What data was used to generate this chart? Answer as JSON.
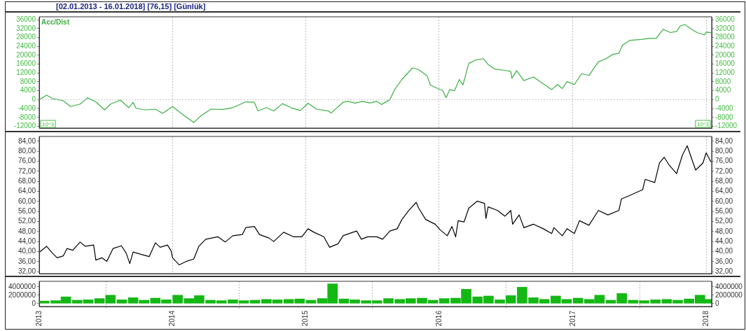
{
  "chart_data": [
    {
      "type": "line",
      "title": "[02.01.2013 - 16.01.2018]  [76,15]  [Günlük]",
      "legend": "top left",
      "grid": "x",
      "tick_labels": "y",
      "annotations": [
        "10^3",
        "10^3"
      ],
      "xlim": [
        "2013-01-01",
        "2018-01-16"
      ],
      "xticks": [
        "2013",
        "2014",
        "2015",
        "2016",
        "2017",
        "2018"
      ],
      "ylim": [
        -12800,
        37300
      ],
      "yticks": [
        -12000,
        -8000,
        -4000,
        0,
        4000,
        8000,
        12000,
        16000,
        20000,
        24000,
        28000,
        32000,
        36000
      ],
      "y2lim": [
        -12800,
        37300
      ],
      "y2ticks": [
        -12000,
        -8000,
        -4000,
        0,
        4000,
        8000,
        12000,
        16000,
        20000,
        24000,
        28000,
        32000,
        36000
      ],
      "ref_lines": [
        {
          "axis": "y",
          "value": 0,
          "color": "#c8c8c8",
          "line_style": "dotted"
        }
      ],
      "series": [
        {
          "name": "Acc/Dist",
          "color": "#3cb043",
          "x": [
            "2013-01-02",
            "2013-01-21",
            "2013-02-06",
            "2013-03-08",
            "2013-03-28",
            "2013-04-23",
            "2013-05-13",
            "2013-06-05",
            "2013-06-29",
            "2013-07-15",
            "2013-08-11",
            "2013-09-03",
            "2013-09-15",
            "2013-09-23",
            "2013-10-19",
            "2013-11-15",
            "2013-12-05",
            "2014-01-01",
            "2014-02-02",
            "2014-02-28",
            "2014-03-20",
            "2014-04-16",
            "2014-05-19",
            "2014-06-15",
            "2014-07-21",
            "2014-08-13",
            "2014-08-23",
            "2014-09-15",
            "2014-10-05",
            "2014-10-29",
            "2014-11-21",
            "2014-12-17",
            "2015-01-07",
            "2015-01-30",
            "2015-03-04",
            "2015-03-11",
            "2015-04-13",
            "2015-04-26",
            "2015-05-16",
            "2015-06-05",
            "2015-06-25",
            "2015-07-14",
            "2015-07-27",
            "2015-08-19",
            "2015-09-01",
            "2015-09-21",
            "2015-10-20",
            "2015-11-06",
            "2015-11-29",
            "2015-12-08",
            "2015-12-28",
            "2016-01-10",
            "2016-01-20",
            "2016-01-30",
            "2016-02-12",
            "2016-02-25",
            "2016-03-06",
            "2016-03-22",
            "2016-04-11",
            "2016-05-01",
            "2016-05-14",
            "2016-06-02",
            "2016-06-29",
            "2016-07-15",
            "2016-07-18",
            "2016-07-31",
            "2016-08-20",
            "2016-09-15",
            "2016-10-12",
            "2016-11-04",
            "2016-11-20",
            "2016-12-03",
            "2016-12-16",
            "2017-01-05",
            "2017-01-25",
            "2017-02-14",
            "2017-03-12",
            "2017-04-01",
            "2017-04-21",
            "2017-05-07",
            "2017-05-17",
            "2017-06-06",
            "2017-07-08",
            "2017-07-28",
            "2017-08-17",
            "2017-09-05",
            "2017-09-25",
            "2017-10-12",
            "2017-10-22",
            "2017-11-04",
            "2017-11-17",
            "2017-12-07",
            "2017-12-27",
            "2018-01-01",
            "2018-01-14"
          ],
          "values": [
            0,
            2000,
            500,
            -500,
            -3100,
            -2000,
            800,
            -1000,
            -4600,
            -2000,
            -200,
            -3600,
            -1200,
            -3900,
            -4600,
            -4300,
            -6200,
            -3100,
            -7200,
            -10300,
            -7200,
            -4300,
            -4400,
            -3600,
            -1000,
            -1200,
            -5100,
            -3600,
            -5100,
            -1800,
            -3600,
            -4900,
            -1600,
            -4300,
            -5100,
            -6000,
            -1200,
            -800,
            -1600,
            -800,
            -1500,
            -800,
            -2200,
            0,
            4500,
            9100,
            14300,
            13500,
            10700,
            6600,
            5000,
            4200,
            900,
            4500,
            4000,
            9100,
            6600,
            16300,
            17900,
            18400,
            15800,
            13700,
            13200,
            12700,
            9600,
            13000,
            8600,
            10200,
            7100,
            4500,
            6800,
            5000,
            8100,
            6800,
            11700,
            10900,
            17000,
            18400,
            20400,
            20900,
            24500,
            26700,
            27100,
            27600,
            27600,
            31700,
            30200,
            30700,
            33200,
            33800,
            32200,
            30200,
            29100,
            30400,
            30200
          ]
        }
      ]
    },
    {
      "type": "line",
      "grid": "x",
      "tick_labels": "y",
      "xlim": [
        "2013-01-01",
        "2018-01-16"
      ],
      "xticks": [
        "2013",
        "2014",
        "2015",
        "2016",
        "2017",
        "2018"
      ],
      "ylim": [
        31.2,
        85.9
      ],
      "yticks": [
        {
          "value": 32,
          "label": "32,00"
        },
        {
          "value": 36,
          "label": "36,00"
        },
        {
          "value": 40,
          "label": "40,00"
        },
        {
          "value": 44,
          "label": "44,00"
        },
        {
          "value": 48,
          "label": "48,00"
        },
        {
          "value": 52,
          "label": "52,00"
        },
        {
          "value": 56,
          "label": "56,00"
        },
        {
          "value": 60,
          "label": "60,00"
        },
        {
          "value": 64,
          "label": "64,00"
        },
        {
          "value": 68,
          "label": "68,00"
        },
        {
          "value": 72,
          "label": "72,00"
        },
        {
          "value": 76,
          "label": "76,00"
        },
        {
          "value": 80,
          "label": "80,00"
        },
        {
          "value": 84,
          "label": "84,00"
        }
      ],
      "y2lim": [
        31.2,
        85.9
      ],
      "y2ticks": [
        {
          "value": 32,
          "label": "32,00"
        },
        {
          "value": 36,
          "label": "36,00"
        },
        {
          "value": 40,
          "label": "40,00"
        },
        {
          "value": 44,
          "label": "44,00"
        },
        {
          "value": 48,
          "label": "48,00"
        },
        {
          "value": 52,
          "label": "52,00"
        },
        {
          "value": 56,
          "label": "56,00"
        },
        {
          "value": 60,
          "label": "60,00"
        },
        {
          "value": 64,
          "label": "64,00"
        },
        {
          "value": 68,
          "label": "68,00"
        },
        {
          "value": 72,
          "label": "72,00"
        },
        {
          "value": 76,
          "label": "76,00"
        },
        {
          "value": 80,
          "label": "80,00"
        },
        {
          "value": 84,
          "label": "84,00"
        }
      ],
      "series": [
        {
          "color": "#000000",
          "x": [
            "2013-01-02",
            "2013-01-21",
            "2013-02-06",
            "2013-02-19",
            "2013-03-08",
            "2013-03-18",
            "2013-04-03",
            "2013-04-23",
            "2013-05-07",
            "2013-05-30",
            "2013-06-05",
            "2013-06-22",
            "2013-07-05",
            "2013-07-22",
            "2013-08-14",
            "2013-08-27",
            "2013-09-06",
            "2013-09-15",
            "2013-10-06",
            "2013-10-29",
            "2013-11-15",
            "2013-11-28",
            "2013-12-18",
            "2013-12-28",
            "2014-01-01",
            "2014-01-19",
            "2014-02-08",
            "2014-02-28",
            "2014-03-14",
            "2014-04-02",
            "2014-05-05",
            "2014-05-25",
            "2014-06-15",
            "2014-07-11",
            "2014-07-21",
            "2014-08-13",
            "2014-08-27",
            "2014-09-22",
            "2014-10-05",
            "2014-11-01",
            "2014-11-28",
            "2014-12-21",
            "2015-01-07",
            "2015-01-23",
            "2015-02-19",
            "2015-03-07",
            "2015-03-30",
            "2015-04-13",
            "2015-04-30",
            "2015-05-20",
            "2015-06-02",
            "2015-06-19",
            "2015-07-14",
            "2015-07-30",
            "2015-08-19",
            "2015-09-08",
            "2015-09-21",
            "2015-10-10",
            "2015-10-30",
            "2015-11-06",
            "2015-11-25",
            "2015-12-21",
            "2016-01-04",
            "2016-01-23",
            "2016-02-05",
            "2016-02-15",
            "2016-02-22",
            "2016-03-09",
            "2016-03-22",
            "2016-04-14",
            "2016-05-04",
            "2016-05-08",
            "2016-05-14",
            "2016-06-09",
            "2016-06-29",
            "2016-07-15",
            "2016-07-20",
            "2016-08-07",
            "2016-08-20",
            "2016-09-15",
            "2016-10-12",
            "2016-11-04",
            "2016-11-10",
            "2016-12-03",
            "2016-12-16",
            "2017-01-05",
            "2017-01-19",
            "2017-02-14",
            "2017-03-12",
            "2017-04-07",
            "2017-05-07",
            "2017-05-14",
            "2017-06-06",
            "2017-07-11",
            "2017-07-18",
            "2017-08-13",
            "2017-08-26",
            "2017-09-08",
            "2017-09-22",
            "2017-10-12",
            "2017-10-28",
            "2017-11-10",
            "2017-12-03",
            "2017-12-23",
            "2018-01-01",
            "2018-01-14"
          ],
          "values": [
            39.8,
            42.1,
            39.4,
            37.5,
            38.3,
            41.2,
            40.5,
            43.8,
            42.1,
            42.6,
            36.6,
            37.5,
            36.1,
            41.2,
            42.3,
            39.4,
            35.2,
            39.8,
            38.9,
            38.0,
            43.5,
            41.7,
            42.6,
            40.3,
            37.5,
            34.7,
            36.1,
            37.0,
            42.1,
            44.9,
            45.9,
            43.8,
            46.3,
            46.8,
            49.6,
            50.0,
            46.8,
            45.4,
            44.0,
            47.7,
            45.9,
            45.9,
            49.1,
            47.7,
            45.9,
            41.7,
            43.1,
            46.3,
            47.2,
            48.2,
            44.9,
            45.9,
            45.9,
            44.9,
            48.2,
            49.1,
            52.8,
            56.4,
            59.6,
            57.3,
            52.8,
            50.9,
            48.6,
            46.3,
            50.0,
            45.9,
            52.3,
            51.8,
            57.3,
            60.1,
            59.2,
            53.2,
            57.8,
            56.4,
            54.1,
            56.4,
            50.9,
            54.6,
            49.5,
            50.9,
            49.1,
            47.2,
            49.5,
            46.3,
            49.1,
            47.2,
            52.3,
            50.5,
            56.4,
            54.6,
            56.4,
            61.0,
            62.4,
            64.7,
            68.8,
            67.5,
            75.3,
            77.6,
            74.4,
            71.1,
            78.5,
            82.2,
            72.5,
            75.3,
            79.4,
            75.7
          ]
        }
      ]
    },
    {
      "type": "bar",
      "grid": "x",
      "xlim": [
        "2013-01-01",
        "2018-01-16"
      ],
      "xticks": [
        "2013",
        "2014",
        "2015",
        "2016",
        "2017",
        "2018"
      ],
      "ylim": [
        -700000,
        5300000
      ],
      "yticks": [
        0,
        2000000,
        4000000
      ],
      "y2lim": [
        -700000,
        5300000
      ],
      "y2ticks": [
        0,
        2000000,
        4000000
      ],
      "series": [
        {
          "color": "#14b814",
          "x": [
            "2013-01-15",
            "2013-02-15",
            "2013-03-15",
            "2013-04-15",
            "2013-05-15",
            "2013-06-15",
            "2013-07-15",
            "2013-08-15",
            "2013-09-15",
            "2013-10-15",
            "2013-11-15",
            "2013-12-15",
            "2014-01-15",
            "2014-02-15",
            "2014-03-15",
            "2014-04-15",
            "2014-05-15",
            "2014-06-15",
            "2014-07-15",
            "2014-08-15",
            "2014-09-15",
            "2014-10-15",
            "2014-11-15",
            "2014-12-15",
            "2015-01-15",
            "2015-02-15",
            "2015-03-15",
            "2015-04-15",
            "2015-05-15",
            "2015-06-15",
            "2015-07-15",
            "2015-08-15",
            "2015-09-15",
            "2015-10-15",
            "2015-11-15",
            "2015-12-15",
            "2016-01-15",
            "2016-02-15",
            "2016-03-15",
            "2016-04-15",
            "2016-05-15",
            "2016-06-15",
            "2016-07-15",
            "2016-08-15",
            "2016-09-15",
            "2016-10-15",
            "2016-11-15",
            "2016-12-15",
            "2017-01-15",
            "2017-02-15",
            "2017-03-15",
            "2017-04-15",
            "2017-05-15",
            "2017-06-15",
            "2017-07-15",
            "2017-08-15",
            "2017-09-15",
            "2017-10-15",
            "2017-11-15",
            "2017-12-15",
            "2018-01-08"
          ],
          "values": [
            600000,
            700000,
            1600000,
            800000,
            900000,
            1200000,
            2000000,
            900000,
            1400000,
            800000,
            1300000,
            900000,
            2000000,
            1200000,
            1900000,
            800000,
            700000,
            900000,
            700000,
            800000,
            1000000,
            900000,
            1000000,
            1100000,
            800000,
            1200000,
            4700000,
            1100000,
            900000,
            700000,
            700000,
            1200000,
            1000000,
            1200000,
            1300000,
            800000,
            1200000,
            1300000,
            3400000,
            1600000,
            1800000,
            900000,
            1900000,
            3900000,
            1400000,
            1000000,
            1800000,
            1000000,
            1300000,
            1000000,
            2000000,
            800000,
            2400000,
            800000,
            700000,
            900000,
            1000000,
            800000,
            1100000,
            2000000,
            1000000
          ]
        }
      ]
    }
  ]
}
